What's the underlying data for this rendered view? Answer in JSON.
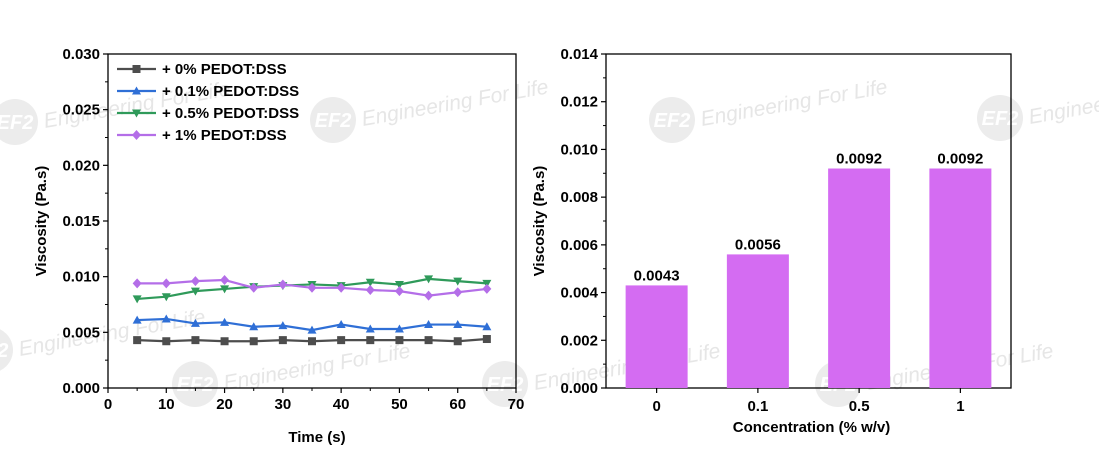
{
  "watermark": {
    "logo_text": "EF2",
    "text": "Engineering For Life"
  },
  "chart_data": [
    {
      "type": "line",
      "title": "",
      "xlabel": "Time (s)",
      "ylabel": "Viscosity (Pa.s)",
      "xlim": [
        0,
        70
      ],
      "ylim": [
        0,
        0.03
      ],
      "xticks": [
        0,
        10,
        20,
        30,
        40,
        50,
        60,
        70
      ],
      "xtick_labels": [
        "0",
        "10",
        "20",
        "30",
        "40",
        "50",
        "60",
        "70"
      ],
      "yticks": [
        0,
        0.005,
        0.01,
        0.015,
        0.02,
        0.025,
        0.03
      ],
      "ytick_labels": [
        "0.000",
        "0.005",
        "0.010",
        "0.015",
        "0.020",
        "0.025",
        "0.030"
      ],
      "grid": false,
      "legend_position": "top-left",
      "x": [
        5,
        10,
        15,
        20,
        25,
        30,
        35,
        40,
        45,
        50,
        55,
        60,
        65
      ],
      "series": [
        {
          "name": "+ 0% PEDOT:DSS",
          "color": "#4d4d4d",
          "marker": "square",
          "values": [
            0.0043,
            0.0042,
            0.0043,
            0.0042,
            0.0042,
            0.0043,
            0.0042,
            0.0043,
            0.0043,
            0.0043,
            0.0043,
            0.0042,
            0.0044
          ]
        },
        {
          "name": "+ 0.1% PEDOT:DSS",
          "color": "#2f6fd6",
          "marker": "triangle-up",
          "values": [
            0.0061,
            0.0062,
            0.0058,
            0.0059,
            0.0055,
            0.0056,
            0.0052,
            0.0057,
            0.0053,
            0.0053,
            0.0057,
            0.0057,
            0.0055
          ]
        },
        {
          "name": "+ 0.5% PEDOT:DSS",
          "color": "#2f9a5a",
          "marker": "triangle-down",
          "values": [
            0.008,
            0.0082,
            0.0087,
            0.0089,
            0.0091,
            0.0092,
            0.0093,
            0.0092,
            0.0095,
            0.0093,
            0.0098,
            0.0096,
            0.0094
          ]
        },
        {
          "name": "+ 1% PEDOT:DSS",
          "color": "#b46ee8",
          "marker": "diamond",
          "values": [
            0.0094,
            0.0094,
            0.0096,
            0.0097,
            0.009,
            0.0093,
            0.009,
            0.009,
            0.0088,
            0.0087,
            0.0083,
            0.0086,
            0.0089
          ]
        }
      ]
    },
    {
      "type": "bar",
      "title": "",
      "xlabel": "Concentration (% w/v)",
      "ylabel": "Viscosity (Pa.s)",
      "categories": [
        "0",
        "0.1",
        "0.5",
        "1"
      ],
      "values": [
        0.0043,
        0.0056,
        0.0092,
        0.0092
      ],
      "data_labels": [
        "0.0043",
        "0.0056",
        "0.0092",
        "0.0092"
      ],
      "ylim": [
        0,
        0.014
      ],
      "yticks": [
        0,
        0.002,
        0.004,
        0.006,
        0.008,
        0.01,
        0.012,
        0.014
      ],
      "ytick_labels": [
        "0.000",
        "0.002",
        "0.004",
        "0.006",
        "0.008",
        "0.010",
        "0.012",
        "0.014"
      ],
      "grid": false,
      "bar_color": "#d46cf2"
    }
  ]
}
